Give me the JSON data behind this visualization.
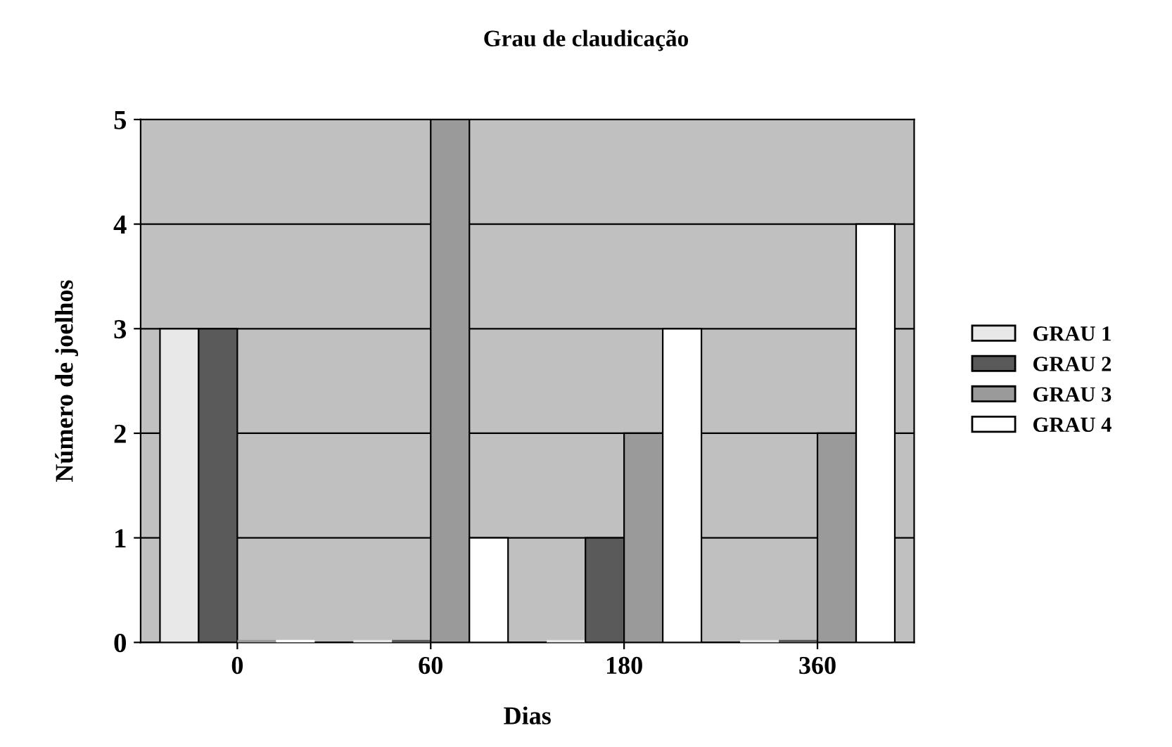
{
  "chart_data": {
    "type": "bar",
    "title": "Grau de claudicação",
    "xlabel": "Dias",
    "ylabel": "Número de joelhos",
    "categories": [
      "0",
      "60",
      "180",
      "360"
    ],
    "series": [
      {
        "name": "GRAU 1",
        "color": "#e8e8e8",
        "values": [
          3,
          0,
          0,
          0
        ]
      },
      {
        "name": "GRAU 2",
        "color": "#5a5a5a",
        "values": [
          3,
          0,
          1,
          0
        ]
      },
      {
        "name": "GRAU 3",
        "color": "#9a9a9a",
        "values": [
          0,
          5,
          2,
          2
        ]
      },
      {
        "name": "GRAU 4",
        "color": "#ffffff",
        "values": [
          0,
          1,
          3,
          4
        ]
      }
    ],
    "ylim": [
      0,
      5
    ],
    "yticks": [
      0,
      1,
      2,
      3,
      4,
      5
    ],
    "grid": "y",
    "legend": "right"
  }
}
